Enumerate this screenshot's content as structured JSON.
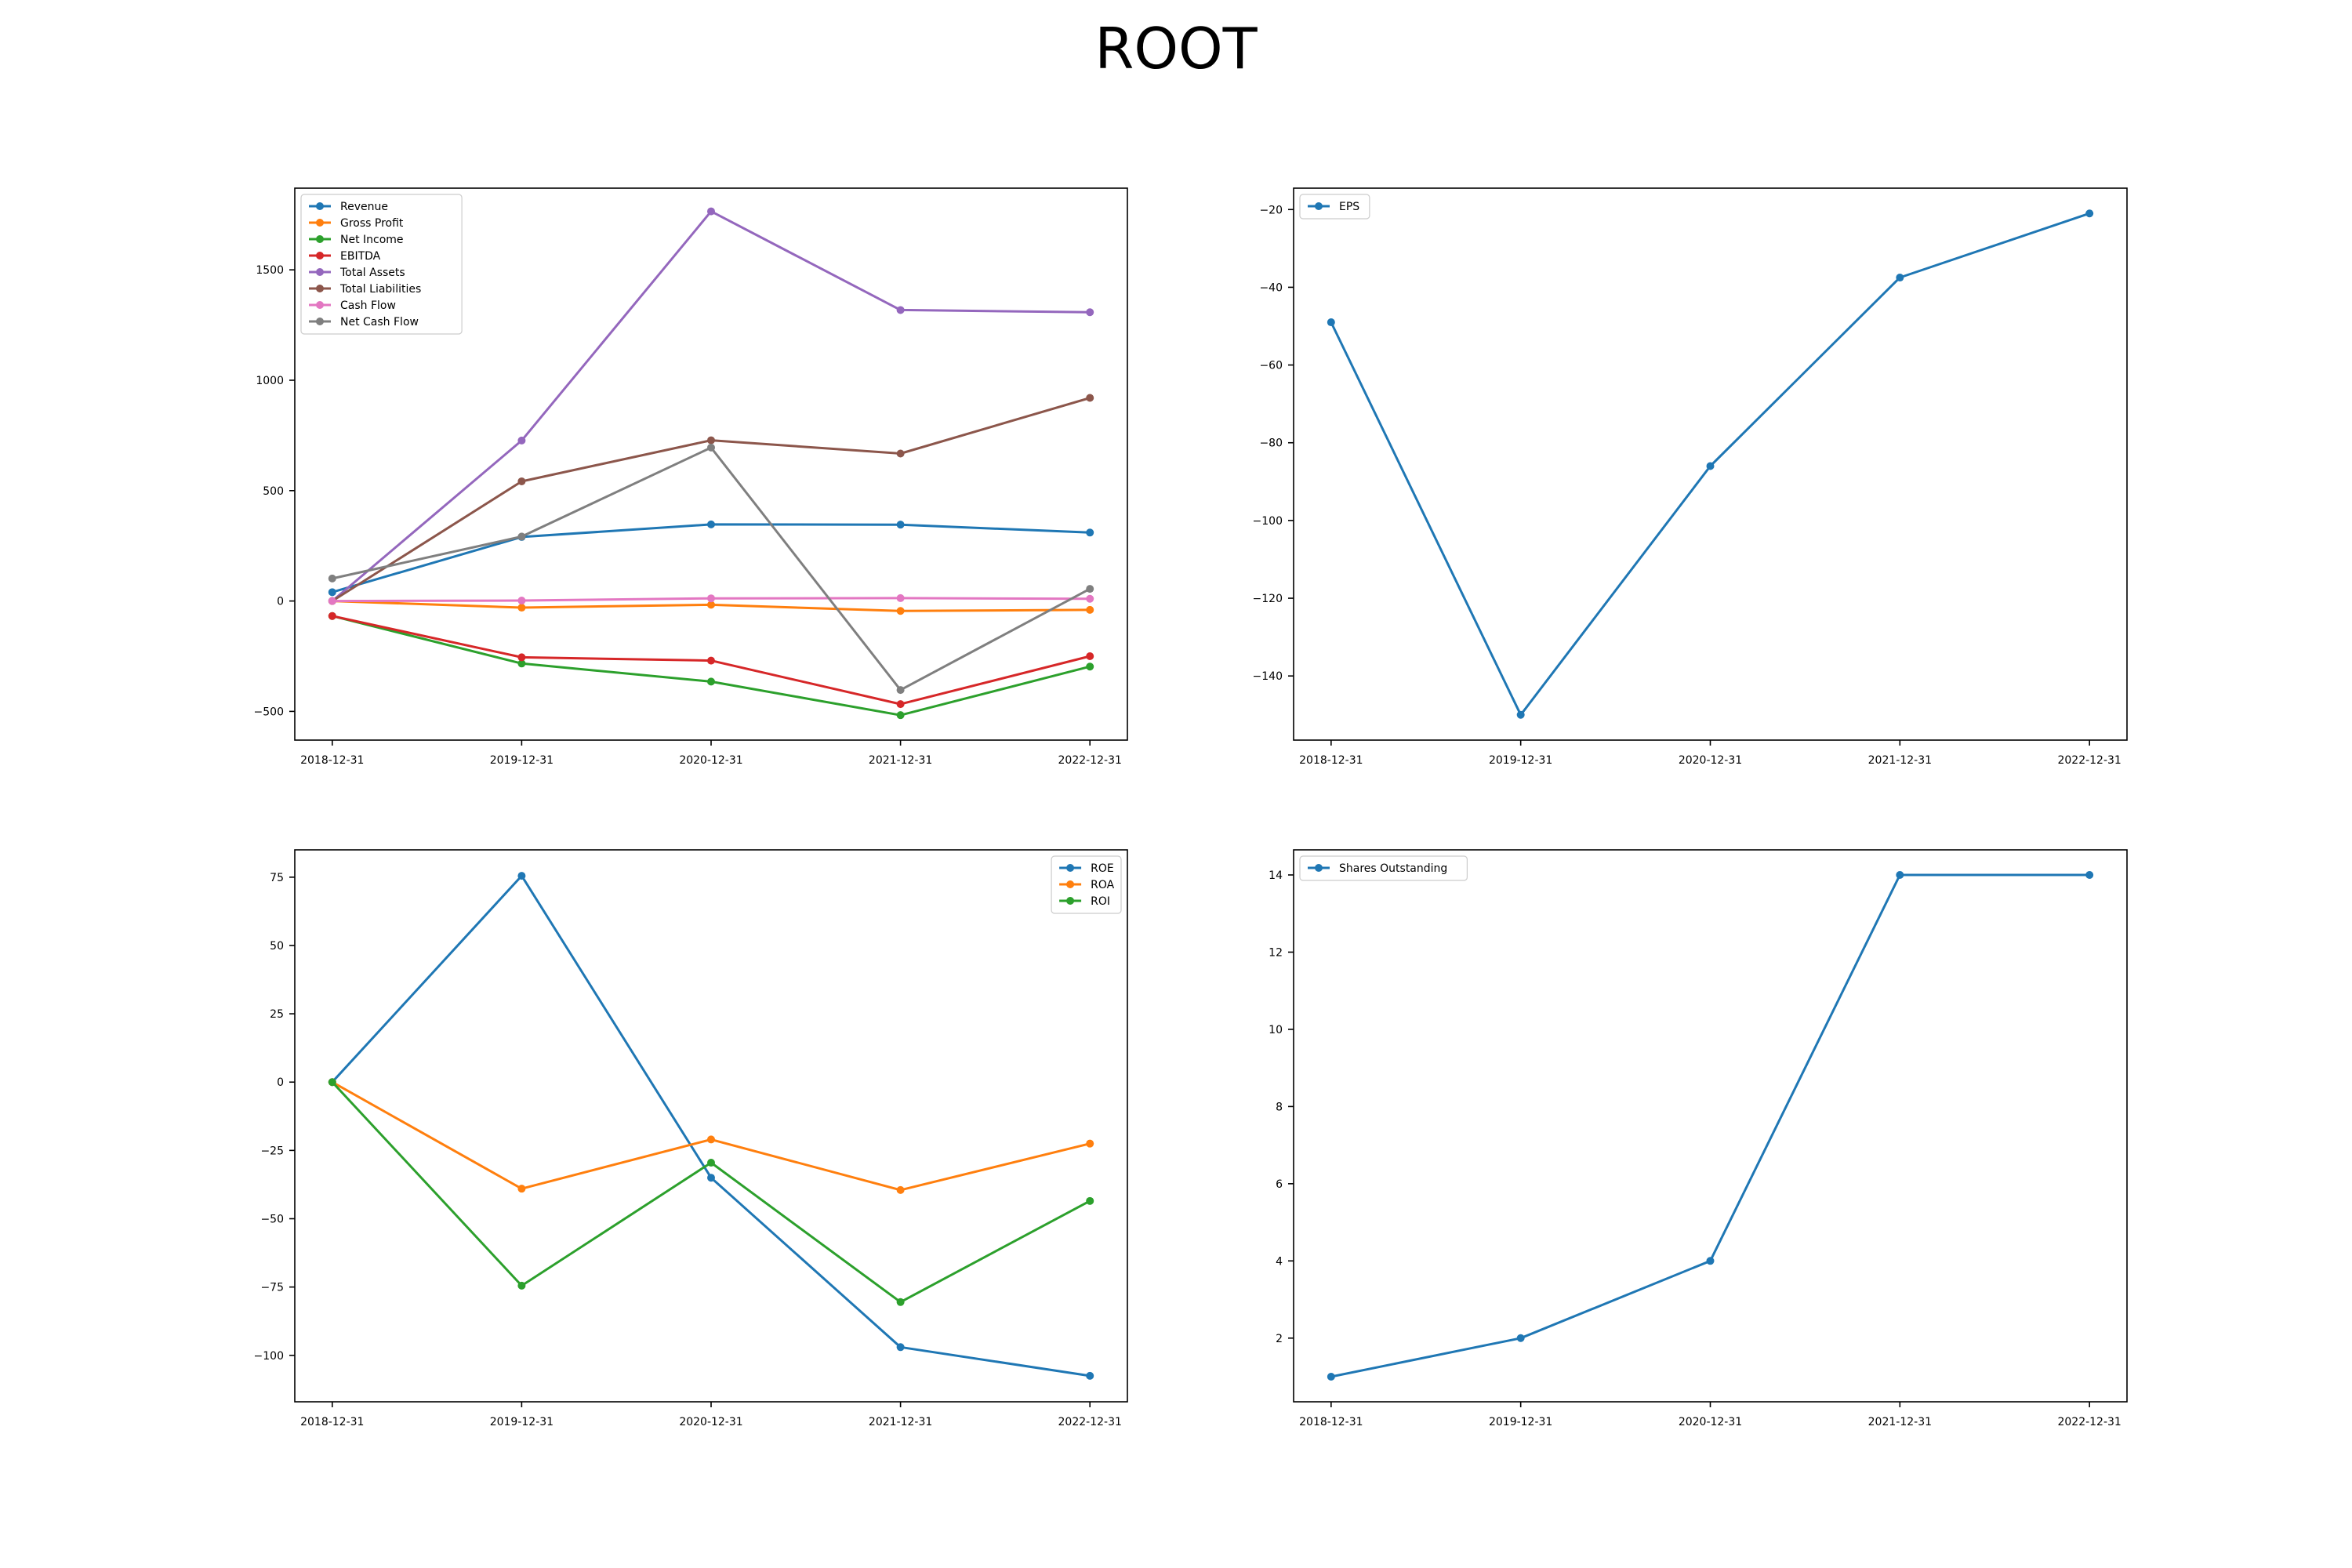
{
  "figure": {
    "title": "ROOT"
  },
  "chart_data": [
    {
      "type": "line",
      "title": "",
      "xlabel": "",
      "ylabel": "",
      "categories": [
        "2018-12-31",
        "2019-12-31",
        "2020-12-31",
        "2021-12-31",
        "2022-12-31"
      ],
      "ylim": [
        -630,
        1870
      ],
      "yticks": [
        -500,
        0,
        500,
        1000,
        1500
      ],
      "grid": false,
      "legend": "top-left",
      "series": [
        {
          "name": "Revenue",
          "color": "#1f77b4",
          "values": [
            40,
            290,
            347,
            346,
            310
          ]
        },
        {
          "name": "Gross Profit",
          "color": "#ff7f0e",
          "values": [
            0,
            -30,
            -17,
            -45,
            -40
          ]
        },
        {
          "name": "Net Income",
          "color": "#2ca02c",
          "values": [
            -68,
            -283,
            -365,
            -517,
            -297
          ]
        },
        {
          "name": "EBITDA",
          "color": "#d62728",
          "values": [
            -68,
            -255,
            -270,
            -467,
            -250
          ]
        },
        {
          "name": "Total Assets",
          "color": "#9467bd",
          "values": [
            0,
            727,
            1765,
            1318,
            1308
          ]
        },
        {
          "name": "Total Liabilities",
          "color": "#8c564b",
          "values": [
            0,
            542,
            728,
            668,
            920
          ]
        },
        {
          "name": "Cash Flow",
          "color": "#e377c2",
          "values": [
            0,
            2,
            12,
            13,
            10
          ]
        },
        {
          "name": "Net Cash Flow",
          "color": "#7f7f7f",
          "values": [
            102,
            292,
            695,
            -403,
            55
          ]
        }
      ]
    },
    {
      "type": "line",
      "title": "",
      "xlabel": "",
      "ylabel": "",
      "categories": [
        "2018-12-31",
        "2019-12-31",
        "2020-12-31",
        "2021-12-31",
        "2022-12-31"
      ],
      "ylim": [
        -156.5,
        -14.5
      ],
      "yticks": [
        -140,
        -120,
        -100,
        -80,
        -60,
        -40,
        -20
      ],
      "grid": false,
      "legend": "top-left",
      "series": [
        {
          "name": "EPS",
          "color": "#1f77b4",
          "values": [
            -49,
            -150,
            -86,
            -37.5,
            -21
          ]
        }
      ]
    },
    {
      "type": "line",
      "title": "",
      "xlabel": "",
      "ylabel": "",
      "categories": [
        "2018-12-31",
        "2019-12-31",
        "2020-12-31",
        "2021-12-31",
        "2022-12-31"
      ],
      "ylim": [
        -117,
        85
      ],
      "yticks": [
        -100,
        -75,
        -50,
        -25,
        0,
        25,
        50,
        75
      ],
      "grid": false,
      "legend": "top-right",
      "series": [
        {
          "name": "ROE",
          "color": "#1f77b4",
          "values": [
            0,
            75.5,
            -35,
            -97,
            -107.5
          ]
        },
        {
          "name": "ROA",
          "color": "#ff7f0e",
          "values": [
            0,
            -39,
            -21,
            -39.5,
            -22.5
          ]
        },
        {
          "name": "ROI",
          "color": "#2ca02c",
          "values": [
            0,
            -74.5,
            -29.5,
            -80.5,
            -43.5
          ]
        }
      ]
    },
    {
      "type": "line",
      "title": "",
      "xlabel": "",
      "ylabel": "",
      "categories": [
        "2018-12-31",
        "2019-12-31",
        "2020-12-31",
        "2021-12-31",
        "2022-12-31"
      ],
      "ylim": [
        0.35,
        14.65
      ],
      "yticks": [
        2,
        4,
        6,
        8,
        10,
        12,
        14
      ],
      "grid": false,
      "legend": "top-left",
      "series": [
        {
          "name": "Shares Outstanding",
          "color": "#1f77b4",
          "values": [
            1,
            2,
            4,
            14,
            14
          ]
        }
      ]
    }
  ]
}
